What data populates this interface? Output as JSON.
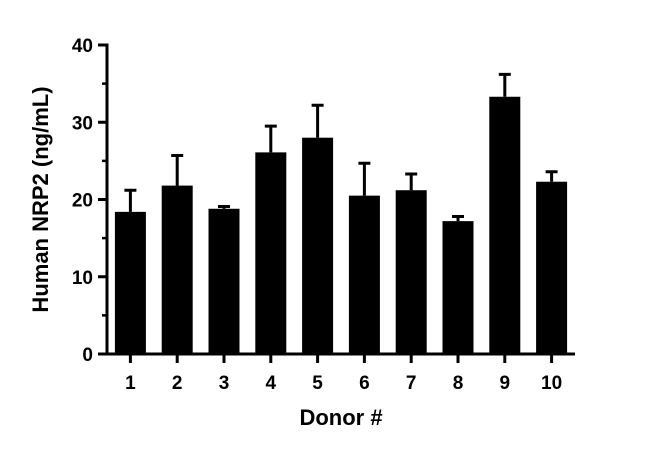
{
  "chart_data": {
    "type": "bar",
    "categories": [
      "1",
      "2",
      "3",
      "4",
      "5",
      "6",
      "7",
      "8",
      "9",
      "10"
    ],
    "values": [
      18.4,
      21.8,
      18.8,
      26.1,
      28.0,
      20.5,
      21.2,
      17.2,
      33.3,
      22.3
    ],
    "error_upper": [
      21.2,
      25.7,
      19.1,
      29.5,
      32.2,
      24.7,
      23.3,
      17.8,
      36.2,
      23.6
    ],
    "xlabel": "Donor #",
    "ylabel": "Human NRP2 (ng/mL)",
    "ylim": [
      0,
      40
    ],
    "yticks": [
      0,
      10,
      20,
      30,
      40
    ],
    "grid": false,
    "bar_color": "#000000"
  }
}
